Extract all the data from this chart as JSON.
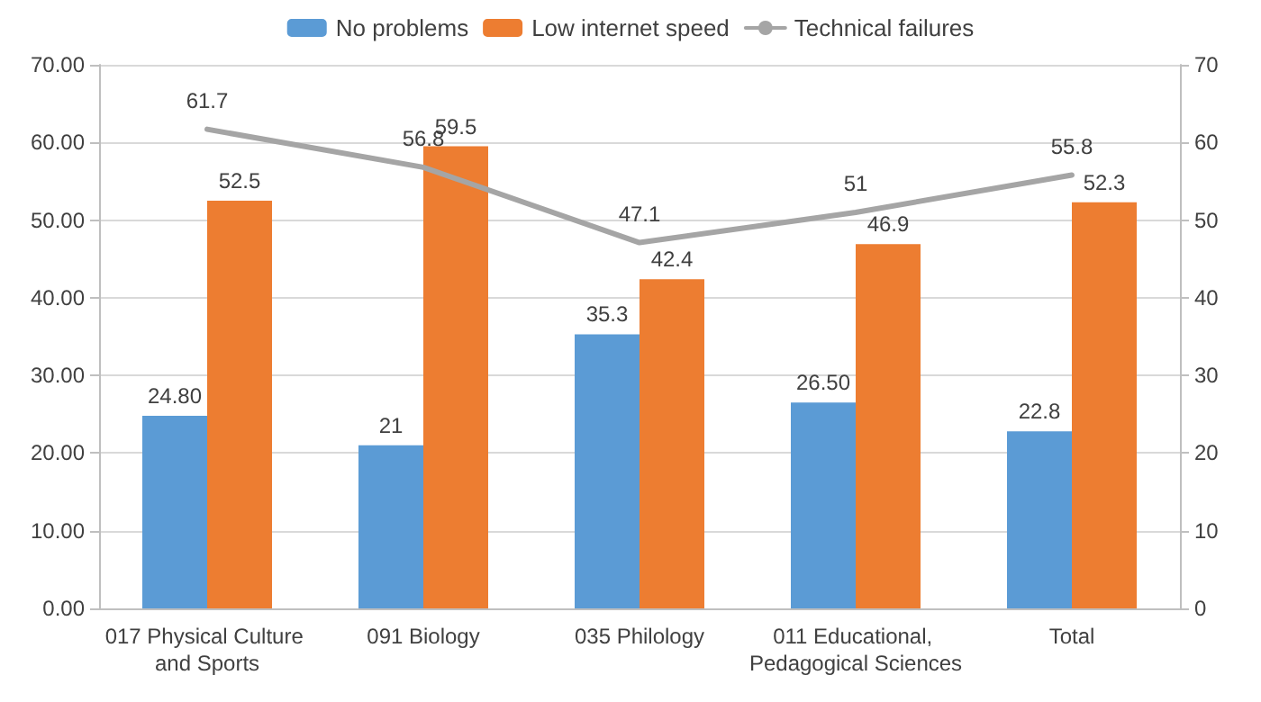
{
  "chart_data": {
    "type": "bar",
    "categories": [
      "017 Physical Culture and Sports",
      "091 Biology",
      "035 Philology",
      "011 Educational, Pedagogical Sciences",
      "Total"
    ],
    "series": [
      {
        "name": "No problems",
        "color": "#5b9bd5",
        "values": [
          24.8,
          21,
          35.3,
          26.5,
          22.8
        ],
        "value_labels": [
          "24.80",
          "21",
          "35.3",
          "26.50",
          "22.8"
        ]
      },
      {
        "name": "Low internet speed",
        "color": "#ed7d31",
        "values": [
          52.5,
          59.5,
          42.4,
          46.9,
          52.3
        ],
        "value_labels": [
          "52.5",
          "59.5",
          "42.4",
          "46.9",
          "52.3"
        ]
      },
      {
        "name": "Technical failures",
        "type": "line",
        "axis": "y2",
        "color": "#a5a5a5",
        "values": [
          61.7,
          56.8,
          47.1,
          51,
          55.8
        ],
        "value_labels": [
          "61.7",
          "56.8",
          "47.1",
          "51",
          "55.8"
        ]
      }
    ],
    "ylim": [
      0,
      70
    ],
    "yticks": [
      {
        "value": 0,
        "label": "0.00"
      },
      {
        "value": 10,
        "label": "10.00"
      },
      {
        "value": 20,
        "label": "20.00"
      },
      {
        "value": 30,
        "label": "30.00"
      },
      {
        "value": 40,
        "label": "40.00"
      },
      {
        "value": 50,
        "label": "50.00"
      },
      {
        "value": 60,
        "label": "60.00"
      },
      {
        "value": 70,
        "label": "70.00"
      }
    ],
    "y2lim": [
      0,
      70
    ],
    "y2ticks": [
      0,
      10,
      20,
      30,
      40,
      50,
      60,
      70
    ],
    "grid": "y",
    "legend": "top",
    "marker": "none",
    "line_style": "solid"
  }
}
